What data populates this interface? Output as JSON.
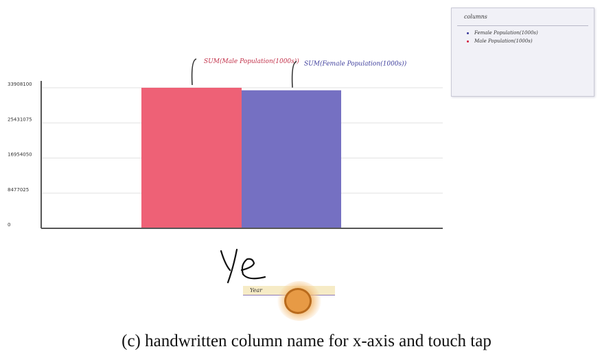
{
  "chart_data": {
    "type": "bar",
    "series": [
      {
        "label": "SUM(Male Population(1000s))",
        "value": 33908100,
        "color": "#ee6176"
      },
      {
        "label": "SUM(Female Population(1000s))",
        "value": 33300000,
        "color": "#7570c2"
      }
    ],
    "y_ticks": [
      "0",
      "8477025",
      "16954050",
      "25431075",
      "33908100"
    ],
    "ylim": [
      0,
      33908100
    ],
    "grid": true,
    "legend_position": "top-right"
  },
  "legend": {
    "title": "columns",
    "items": [
      {
        "label": "Female Population(1000s)",
        "color": "#3b3b9b"
      },
      {
        "label": "Male Population(1000s)",
        "color": "#d21c3c"
      }
    ]
  },
  "handwriting": {
    "text": "Ye"
  },
  "suggestion": {
    "label": "Year"
  },
  "tap": {
    "icon": "touch-tap-icon",
    "color": "#e79a45"
  },
  "caption": "(c) handwritten column name for x-axis and touch tap"
}
